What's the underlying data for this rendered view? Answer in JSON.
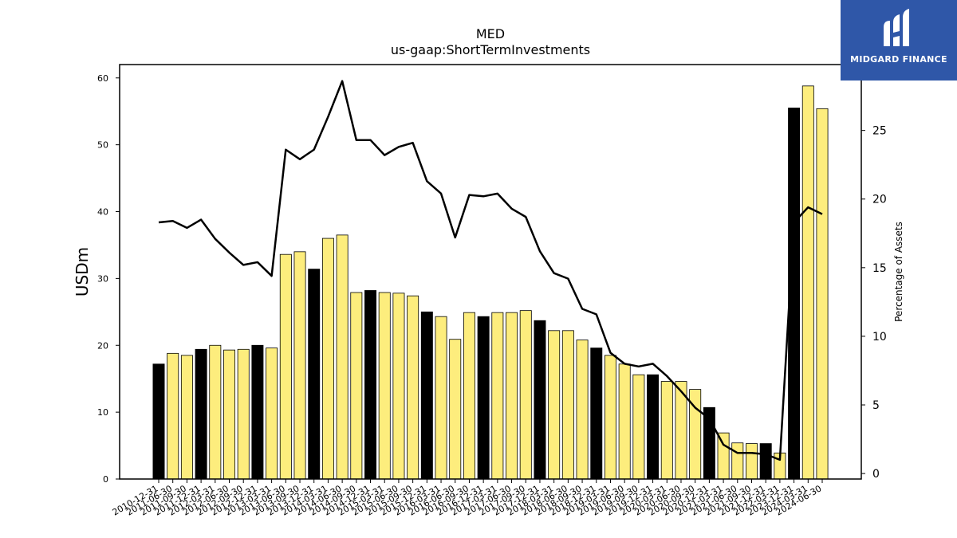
{
  "chart_data": {
    "type": "bar",
    "title": "MED",
    "subtitle": "us-gaap:ShortTermInvestments",
    "ylabel": "USDm",
    "y2label": "Percentage of Assets",
    "ylim": [
      0,
      62
    ],
    "y2lim": [
      -0.4,
      29.8
    ],
    "yticks": [
      0,
      10,
      20,
      30,
      40,
      50,
      60
    ],
    "y2ticks": [
      0,
      5,
      10,
      15,
      20,
      25
    ],
    "colors": {
      "annual": "#000000",
      "quarterly": "#fded7d",
      "line": "#000000"
    },
    "categories": [
      "2010-12-31",
      "2011-06-30",
      "2011-09-30",
      "2011-12-31",
      "2012-03-31",
      "2012-06-30",
      "2012-09-30",
      "2012-12-31",
      "2013-03-31",
      "2013-06-30",
      "2013-09-30",
      "2013-12-31",
      "2014-03-31",
      "2014-06-30",
      "2014-09-30",
      "2014-12-31",
      "2015-03-31",
      "2015-06-30",
      "2015-09-30",
      "2015-12-31",
      "2016-03-31",
      "2016-06-30",
      "2016-09-30",
      "2016-12-31",
      "2017-03-31",
      "2017-06-30",
      "2017-09-30",
      "2017-12-31",
      "2018-03-31",
      "2018-06-30",
      "2018-09-30",
      "2018-12-31",
      "2019-03-31",
      "2019-06-30",
      "2019-09-30",
      "2019-12-31",
      "2020-03-31",
      "2020-06-30",
      "2020-09-30",
      "2020-12-31",
      "2021-03-31",
      "2021-06-30",
      "2021-09-30",
      "2021-12-31",
      "2022-03-31",
      "2023-12-31",
      "2024-03-31",
      "2024-06-30"
    ],
    "values": [
      17.2,
      18.8,
      18.5,
      19.4,
      20.0,
      19.3,
      19.4,
      20.0,
      19.6,
      33.6,
      34.0,
      31.4,
      36.0,
      36.5,
      27.9,
      28.2,
      27.9,
      27.8,
      27.4,
      25.0,
      24.3,
      20.9,
      24.9,
      24.3,
      24.9,
      24.9,
      25.2,
      23.7,
      22.2,
      22.2,
      20.8,
      19.6,
      18.5,
      17.2,
      15.6,
      15.6,
      14.6,
      14.6,
      13.4,
      10.7,
      6.9,
      5.4,
      5.3,
      5.3,
      3.9,
      55.5,
      58.8,
      55.4
    ],
    "annual": [
      true,
      false,
      false,
      true,
      false,
      false,
      false,
      true,
      false,
      false,
      false,
      true,
      false,
      false,
      false,
      true,
      false,
      false,
      false,
      true,
      false,
      false,
      false,
      true,
      false,
      false,
      false,
      true,
      false,
      false,
      false,
      true,
      false,
      false,
      false,
      true,
      false,
      false,
      false,
      true,
      false,
      false,
      false,
      true,
      false,
      true,
      false,
      false
    ],
    "line_values": [
      18.3,
      18.4,
      17.9,
      18.5,
      17.1,
      16.1,
      15.2,
      15.4,
      14.4,
      23.6,
      22.9,
      23.6,
      26.0,
      28.6,
      24.3,
      24.3,
      23.2,
      23.8,
      24.1,
      21.3,
      20.4,
      17.2,
      20.3,
      20.2,
      20.4,
      19.3,
      18.7,
      16.2,
      14.6,
      14.2,
      12.0,
      11.6,
      8.8,
      8.0,
      7.8,
      8.0,
      7.1,
      6.0,
      4.8,
      4.0,
      2.1,
      1.5,
      1.5,
      1.4,
      1.0,
      18.3,
      19.4,
      18.9
    ]
  }
}
